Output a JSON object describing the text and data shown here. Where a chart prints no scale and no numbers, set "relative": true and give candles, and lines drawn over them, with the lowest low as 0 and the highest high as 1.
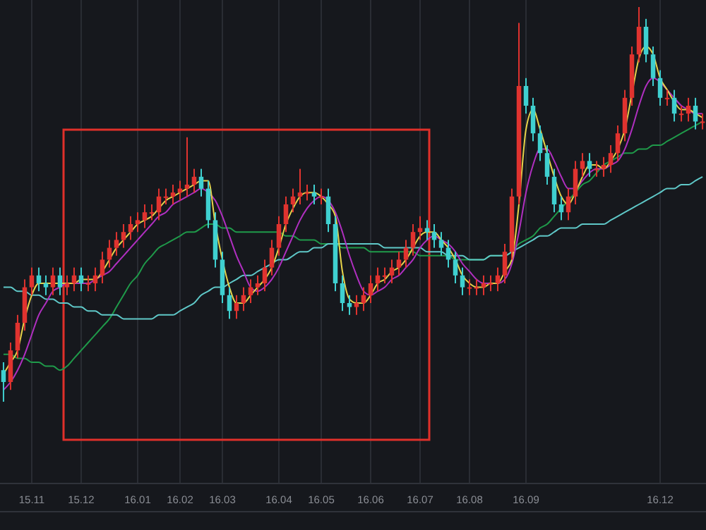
{
  "chart_data": {
    "type": "candlestick",
    "relative": true,
    "grid": "x",
    "categories": [
      null,
      null,
      null,
      null,
      "15.11",
      null,
      null,
      null,
      null,
      null,
      null,
      "15.12",
      null,
      null,
      null,
      null,
      null,
      null,
      null,
      "16.01",
      null,
      null,
      null,
      null,
      null,
      "16.02",
      null,
      null,
      null,
      null,
      null,
      "16.03",
      null,
      null,
      null,
      null,
      null,
      null,
      null,
      "16.04",
      null,
      null,
      null,
      null,
      null,
      "16.05",
      null,
      null,
      null,
      null,
      null,
      null,
      "16.06",
      null,
      null,
      null,
      null,
      null,
      null,
      "16.07",
      null,
      null,
      null,
      null,
      null,
      null,
      "16.08",
      null,
      null,
      null,
      null,
      null,
      null,
      null,
      "16.09",
      null,
      null,
      null,
      null,
      null,
      null,
      null,
      null,
      null,
      null,
      null,
      null,
      null,
      null,
      null,
      null,
      null,
      null,
      "16.12",
      null,
      null,
      null,
      null,
      null,
      null
    ],
    "colors": [
      "#3fd0d0",
      "#e0332f",
      "#e0332f",
      "#e0332f",
      "#e0332f",
      "#3fd0d0",
      "#3fd0d0",
      "#e0332f",
      "#3fd0d0",
      "#e0332f",
      "#e0332f",
      "#3fd0d0",
      "#e0332f",
      "#e0332f",
      "#e0332f",
      "#e0332f",
      "#e0332f",
      "#e0332f",
      "#e0332f",
      "#e0332f",
      "#e0332f",
      "#e0332f",
      "#e0332f",
      "#e0332f",
      "#e0332f",
      "#e0332f",
      "#e0332f",
      "#e0332f",
      "#3fd0d0",
      "#3fd0d0",
      "#3fd0d0",
      "#3fd0d0",
      "#3fd0d0",
      "#e0332f",
      "#e0332f",
      "#e0332f",
      "#e0332f",
      "#e0332f",
      "#e0332f",
      "#e0332f",
      "#e0332f",
      "#e0332f",
      "#e0332f",
      "#e0332f",
      "#3fd0d0",
      "#e0332f",
      "#3fd0d0",
      "#3fd0d0",
      "#3fd0d0",
      "#3fd0d0",
      "#e0332f",
      "#e0332f",
      "#e0332f",
      "#e0332f",
      "#e0332f",
      "#e0332f",
      "#e0332f",
      "#e0332f",
      "#e0332f",
      "#e0332f",
      "#3fd0d0",
      "#3fd0d0",
      "#3fd0d0",
      "#3fd0d0",
      "#3fd0d0",
      "#3fd0d0",
      "#e0332f",
      "#e0332f",
      "#e0332f",
      "#e0332f",
      "#e0332f",
      "#e0332f",
      "#e0332f",
      "#e0332f",
      "#3fd0d0",
      "#3fd0d0",
      "#3fd0d0",
      "#3fd0d0",
      "#3fd0d0",
      "#3fd0d0",
      "#e0332f",
      "#e0332f",
      "#e0332f",
      "#3fd0d0",
      "#e0332f",
      "#e0332f",
      "#e0332f",
      "#e0332f",
      "#e0332f",
      "#e0332f",
      "#e0332f",
      "#3fd0d0",
      "#3fd0d0",
      "#3fd0d0",
      "#e0332f",
      "#3fd0d0",
      "#e0332f",
      "#e0332f",
      "#3fd0d0",
      "#e0332f"
    ],
    "ohlc": [
      [
        0.08,
        0.1,
        0.0,
        0.05
      ],
      [
        0.05,
        0.15,
        0.03,
        0.13
      ],
      [
        0.13,
        0.22,
        0.11,
        0.2
      ],
      [
        0.2,
        0.31,
        0.18,
        0.29
      ],
      [
        0.29,
        0.34,
        0.27,
        0.32
      ],
      [
        0.32,
        0.34,
        0.28,
        0.3
      ],
      [
        0.3,
        0.32,
        0.27,
        0.29
      ],
      [
        0.29,
        0.34,
        0.27,
        0.32
      ],
      [
        0.32,
        0.34,
        0.27,
        0.29
      ],
      [
        0.29,
        0.32,
        0.27,
        0.3
      ],
      [
        0.3,
        0.34,
        0.28,
        0.32
      ],
      [
        0.32,
        0.34,
        0.28,
        0.3
      ],
      [
        0.3,
        0.32,
        0.28,
        0.3
      ],
      [
        0.3,
        0.34,
        0.28,
        0.32
      ],
      [
        0.32,
        0.38,
        0.3,
        0.36
      ],
      [
        0.36,
        0.41,
        0.34,
        0.39
      ],
      [
        0.39,
        0.43,
        0.37,
        0.41
      ],
      [
        0.41,
        0.45,
        0.39,
        0.43
      ],
      [
        0.43,
        0.47,
        0.41,
        0.45
      ],
      [
        0.45,
        0.48,
        0.43,
        0.46
      ],
      [
        0.46,
        0.5,
        0.44,
        0.48
      ],
      [
        0.48,
        0.5,
        0.46,
        0.48
      ],
      [
        0.48,
        0.54,
        0.46,
        0.52
      ],
      [
        0.52,
        0.54,
        0.5,
        0.52
      ],
      [
        0.52,
        0.55,
        0.5,
        0.53
      ],
      [
        0.53,
        0.56,
        0.51,
        0.54
      ],
      [
        0.54,
        0.67,
        0.52,
        0.55
      ],
      [
        0.55,
        0.59,
        0.53,
        0.57
      ],
      [
        0.57,
        0.59,
        0.52,
        0.54
      ],
      [
        0.54,
        0.56,
        0.44,
        0.46
      ],
      [
        0.46,
        0.48,
        0.34,
        0.36
      ],
      [
        0.36,
        0.38,
        0.25,
        0.27
      ],
      [
        0.27,
        0.29,
        0.21,
        0.23
      ],
      [
        0.23,
        0.27,
        0.21,
        0.25
      ],
      [
        0.25,
        0.29,
        0.23,
        0.27
      ],
      [
        0.27,
        0.31,
        0.25,
        0.29
      ],
      [
        0.29,
        0.32,
        0.27,
        0.3
      ],
      [
        0.3,
        0.36,
        0.28,
        0.34
      ],
      [
        0.34,
        0.41,
        0.32,
        0.39
      ],
      [
        0.39,
        0.47,
        0.37,
        0.45
      ],
      [
        0.45,
        0.52,
        0.43,
        0.5
      ],
      [
        0.5,
        0.54,
        0.48,
        0.52
      ],
      [
        0.52,
        0.59,
        0.5,
        0.53
      ],
      [
        0.53,
        0.55,
        0.51,
        0.53
      ],
      [
        0.53,
        0.55,
        0.5,
        0.52
      ],
      [
        0.52,
        0.54,
        0.5,
        0.52
      ],
      [
        0.52,
        0.54,
        0.43,
        0.45
      ],
      [
        0.45,
        0.47,
        0.28,
        0.3
      ],
      [
        0.3,
        0.32,
        0.23,
        0.25
      ],
      [
        0.25,
        0.27,
        0.22,
        0.24
      ],
      [
        0.24,
        0.27,
        0.22,
        0.25
      ],
      [
        0.25,
        0.29,
        0.23,
        0.27
      ],
      [
        0.27,
        0.32,
        0.25,
        0.3
      ],
      [
        0.3,
        0.34,
        0.28,
        0.32
      ],
      [
        0.32,
        0.34,
        0.3,
        0.32
      ],
      [
        0.32,
        0.36,
        0.3,
        0.34
      ],
      [
        0.34,
        0.38,
        0.32,
        0.36
      ],
      [
        0.36,
        0.41,
        0.34,
        0.39
      ],
      [
        0.39,
        0.45,
        0.37,
        0.43
      ],
      [
        0.43,
        0.47,
        0.41,
        0.44
      ],
      [
        0.44,
        0.46,
        0.41,
        0.43
      ],
      [
        0.43,
        0.45,
        0.39,
        0.41
      ],
      [
        0.41,
        0.43,
        0.37,
        0.39
      ],
      [
        0.39,
        0.41,
        0.34,
        0.36
      ],
      [
        0.36,
        0.38,
        0.3,
        0.32
      ],
      [
        0.32,
        0.34,
        0.27,
        0.29
      ],
      [
        0.29,
        0.31,
        0.27,
        0.29
      ],
      [
        0.29,
        0.31,
        0.27,
        0.29
      ],
      [
        0.29,
        0.32,
        0.27,
        0.3
      ],
      [
        0.3,
        0.32,
        0.28,
        0.3
      ],
      [
        0.3,
        0.34,
        0.28,
        0.32
      ],
      [
        0.32,
        0.4,
        0.3,
        0.38
      ],
      [
        0.38,
        0.54,
        0.36,
        0.52
      ],
      [
        0.52,
        0.96,
        0.5,
        0.8
      ],
      [
        0.8,
        0.82,
        0.73,
        0.75
      ],
      [
        0.75,
        0.77,
        0.66,
        0.68
      ],
      [
        0.68,
        0.7,
        0.61,
        0.63
      ],
      [
        0.63,
        0.65,
        0.55,
        0.57
      ],
      [
        0.57,
        0.59,
        0.48,
        0.5
      ],
      [
        0.5,
        0.52,
        0.46,
        0.48
      ],
      [
        0.48,
        0.54,
        0.46,
        0.52
      ],
      [
        0.52,
        0.61,
        0.5,
        0.59
      ],
      [
        0.59,
        0.63,
        0.57,
        0.61
      ],
      [
        0.61,
        0.63,
        0.57,
        0.59
      ],
      [
        0.59,
        0.61,
        0.57,
        0.59
      ],
      [
        0.59,
        0.62,
        0.57,
        0.6
      ],
      [
        0.6,
        0.65,
        0.58,
        0.63
      ],
      [
        0.63,
        0.7,
        0.61,
        0.68
      ],
      [
        0.68,
        0.79,
        0.66,
        0.77
      ],
      [
        0.77,
        0.9,
        0.75,
        0.88
      ],
      [
        0.88,
        1.0,
        0.86,
        0.95
      ],
      [
        0.95,
        0.97,
        0.86,
        0.88
      ],
      [
        0.88,
        0.9,
        0.8,
        0.82
      ],
      [
        0.82,
        0.84,
        0.75,
        0.77
      ],
      [
        0.77,
        0.79,
        0.75,
        0.77
      ],
      [
        0.77,
        0.79,
        0.71,
        0.73
      ],
      [
        0.73,
        0.75,
        0.71,
        0.73
      ],
      [
        0.73,
        0.77,
        0.71,
        0.75
      ],
      [
        0.75,
        0.77,
        0.69,
        0.71
      ],
      [
        0.71,
        0.73,
        0.69,
        0.71
      ]
    ],
    "series": [
      {
        "type": "line",
        "color": "#1f9a4a",
        "values": [
          0.12,
          0.12,
          0.11,
          0.11,
          0.1,
          0.1,
          0.09,
          0.09,
          0.08,
          0.09,
          0.11,
          0.13,
          0.15,
          0.17,
          0.19,
          0.21,
          0.24,
          0.27,
          0.3,
          0.32,
          0.35,
          0.37,
          0.39,
          0.4,
          0.41,
          0.42,
          0.43,
          0.43,
          0.44,
          0.45,
          0.45,
          0.44,
          0.44,
          0.43,
          0.43,
          0.43,
          0.43,
          0.43,
          0.43,
          0.43,
          0.42,
          0.42,
          0.41,
          0.41,
          0.41,
          0.4,
          0.4,
          0.4,
          0.39,
          0.39,
          0.39,
          0.39,
          0.38,
          0.38,
          0.38,
          0.38,
          0.38,
          0.38,
          0.38,
          0.37,
          0.37,
          0.37,
          0.37,
          0.37,
          0.36,
          0.36,
          0.36,
          0.36,
          0.36,
          0.37,
          0.37,
          0.37,
          0.38,
          0.4,
          0.41,
          0.42,
          0.44,
          0.45,
          0.47,
          0.49,
          0.51,
          0.53,
          0.55,
          0.56,
          0.58,
          0.6,
          0.61,
          0.62,
          0.63,
          0.63,
          0.64,
          0.64,
          0.65,
          0.65,
          0.66,
          0.67,
          0.68,
          0.69,
          0.7,
          0.71
        ]
      },
      {
        "type": "line",
        "color": "#5fc8c8",
        "values": [
          0.29,
          0.29,
          0.28,
          0.28,
          0.27,
          0.27,
          0.26,
          0.26,
          0.25,
          0.25,
          0.24,
          0.24,
          0.23,
          0.23,
          0.22,
          0.22,
          0.22,
          0.21,
          0.21,
          0.21,
          0.21,
          0.21,
          0.22,
          0.22,
          0.22,
          0.23,
          0.24,
          0.25,
          0.27,
          0.28,
          0.29,
          0.29,
          0.3,
          0.31,
          0.32,
          0.32,
          0.33,
          0.34,
          0.35,
          0.36,
          0.36,
          0.37,
          0.38,
          0.38,
          0.39,
          0.39,
          0.4,
          0.4,
          0.4,
          0.4,
          0.4,
          0.4,
          0.4,
          0.4,
          0.39,
          0.39,
          0.39,
          0.39,
          0.39,
          0.39,
          0.38,
          0.38,
          0.38,
          0.37,
          0.37,
          0.37,
          0.36,
          0.36,
          0.36,
          0.37,
          0.37,
          0.37,
          0.38,
          0.39,
          0.4,
          0.41,
          0.42,
          0.42,
          0.43,
          0.44,
          0.44,
          0.44,
          0.45,
          0.45,
          0.45,
          0.45,
          0.46,
          0.47,
          0.48,
          0.49,
          0.5,
          0.51,
          0.52,
          0.53,
          0.54,
          0.54,
          0.55,
          0.55,
          0.56,
          0.57
        ]
      },
      {
        "type": "line",
        "color": "#b02fc0",
        "values": [
          0.03,
          0.05,
          0.08,
          0.12,
          0.17,
          0.22,
          0.25,
          0.28,
          0.29,
          0.3,
          0.3,
          0.3,
          0.3,
          0.31,
          0.32,
          0.33,
          0.35,
          0.37,
          0.39,
          0.41,
          0.43,
          0.45,
          0.47,
          0.48,
          0.5,
          0.51,
          0.52,
          0.53,
          0.54,
          0.53,
          0.51,
          0.47,
          0.42,
          0.37,
          0.33,
          0.29,
          0.28,
          0.29,
          0.31,
          0.34,
          0.38,
          0.42,
          0.46,
          0.49,
          0.51,
          0.52,
          0.51,
          0.48,
          0.43,
          0.37,
          0.32,
          0.28,
          0.27,
          0.28,
          0.29,
          0.31,
          0.32,
          0.34,
          0.36,
          0.39,
          0.41,
          0.42,
          0.41,
          0.4,
          0.38,
          0.35,
          0.33,
          0.31,
          0.3,
          0.3,
          0.3,
          0.31,
          0.35,
          0.43,
          0.53,
          0.6,
          0.64,
          0.64,
          0.61,
          0.57,
          0.54,
          0.54,
          0.56,
          0.58,
          0.59,
          0.59,
          0.6,
          0.61,
          0.64,
          0.69,
          0.75,
          0.8,
          0.82,
          0.81,
          0.79,
          0.77,
          0.75,
          0.74,
          0.73,
          0.73
        ]
      },
      {
        "type": "line",
        "color": "#e8d44a",
        "values": [
          0.07,
          0.1,
          0.13,
          0.21,
          0.27,
          0.3,
          0.3,
          0.3,
          0.3,
          0.3,
          0.3,
          0.31,
          0.31,
          0.31,
          0.33,
          0.36,
          0.39,
          0.41,
          0.43,
          0.45,
          0.46,
          0.47,
          0.49,
          0.51,
          0.52,
          0.53,
          0.54,
          0.55,
          0.56,
          0.56,
          0.45,
          0.36,
          0.29,
          0.25,
          0.25,
          0.27,
          0.29,
          0.31,
          0.34,
          0.39,
          0.45,
          0.49,
          0.52,
          0.53,
          0.53,
          0.52,
          0.5,
          0.47,
          0.33,
          0.26,
          0.25,
          0.25,
          0.27,
          0.3,
          0.31,
          0.33,
          0.34,
          0.36,
          0.39,
          0.42,
          0.43,
          0.43,
          0.41,
          0.39,
          0.36,
          0.32,
          0.3,
          0.29,
          0.29,
          0.3,
          0.3,
          0.33,
          0.36,
          0.5,
          0.69,
          0.74,
          0.69,
          0.63,
          0.57,
          0.52,
          0.5,
          0.53,
          0.57,
          0.6,
          0.6,
          0.59,
          0.61,
          0.64,
          0.69,
          0.78,
          0.87,
          0.9,
          0.88,
          0.82,
          0.79,
          0.76,
          0.74,
          0.74,
          0.73,
          0.72
        ]
      }
    ]
  }
}
